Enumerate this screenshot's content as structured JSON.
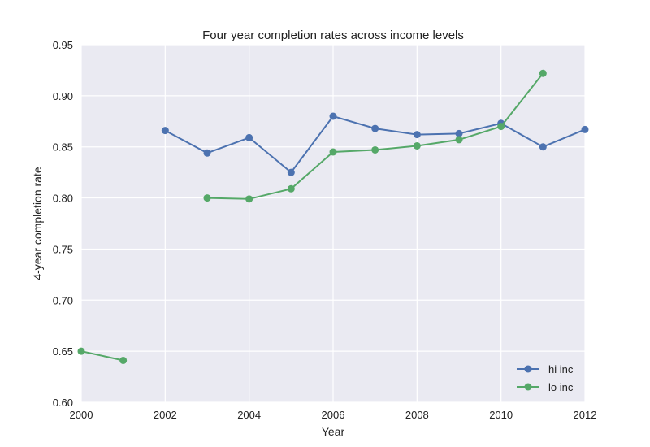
{
  "chart_data": {
    "type": "line",
    "title": "Four year completion rates across income levels",
    "xlabel": "Year",
    "ylabel": "4-year completion rate",
    "xlim": [
      2000,
      2012
    ],
    "ylim": [
      0.6,
      0.95
    ],
    "xticks": [
      2000,
      2002,
      2004,
      2006,
      2008,
      2010,
      2012
    ],
    "yticks": [
      0.6,
      0.65,
      0.7,
      0.75,
      0.8,
      0.85,
      0.9,
      0.95
    ],
    "xtick_labels": [
      "2000",
      "2002",
      "2004",
      "2006",
      "2008",
      "2010",
      "2012"
    ],
    "ytick_labels": [
      "0.60",
      "0.65",
      "0.70",
      "0.75",
      "0.80",
      "0.85",
      "0.90",
      "0.95"
    ],
    "grid": true,
    "legend_position": "bottom-right",
    "background": "#eaeaf2",
    "series": [
      {
        "name": "hi inc",
        "color": "#4c72b0",
        "segments": [
          [
            {
              "x": 2002,
              "y": 0.866
            },
            {
              "x": 2003,
              "y": 0.844
            },
            {
              "x": 2004,
              "y": 0.859
            },
            {
              "x": 2005,
              "y": 0.825
            },
            {
              "x": 2006,
              "y": 0.88
            },
            {
              "x": 2007,
              "y": 0.868
            },
            {
              "x": 2008,
              "y": 0.862
            },
            {
              "x": 2009,
              "y": 0.863
            },
            {
              "x": 2010,
              "y": 0.873
            },
            {
              "x": 2011,
              "y": 0.85
            },
            {
              "x": 2012,
              "y": 0.867
            }
          ]
        ]
      },
      {
        "name": "lo inc",
        "color": "#55a868",
        "segments": [
          [
            {
              "x": 2000,
              "y": 0.65
            },
            {
              "x": 2001,
              "y": 0.641
            }
          ],
          [
            {
              "x": 2003,
              "y": 0.8
            },
            {
              "x": 2004,
              "y": 0.799
            },
            {
              "x": 2005,
              "y": 0.809
            },
            {
              "x": 2006,
              "y": 0.845
            },
            {
              "x": 2007,
              "y": 0.847
            },
            {
              "x": 2008,
              "y": 0.851
            },
            {
              "x": 2009,
              "y": 0.857
            },
            {
              "x": 2010,
              "y": 0.87
            },
            {
              "x": 2011,
              "y": 0.922
            }
          ]
        ]
      }
    ]
  }
}
